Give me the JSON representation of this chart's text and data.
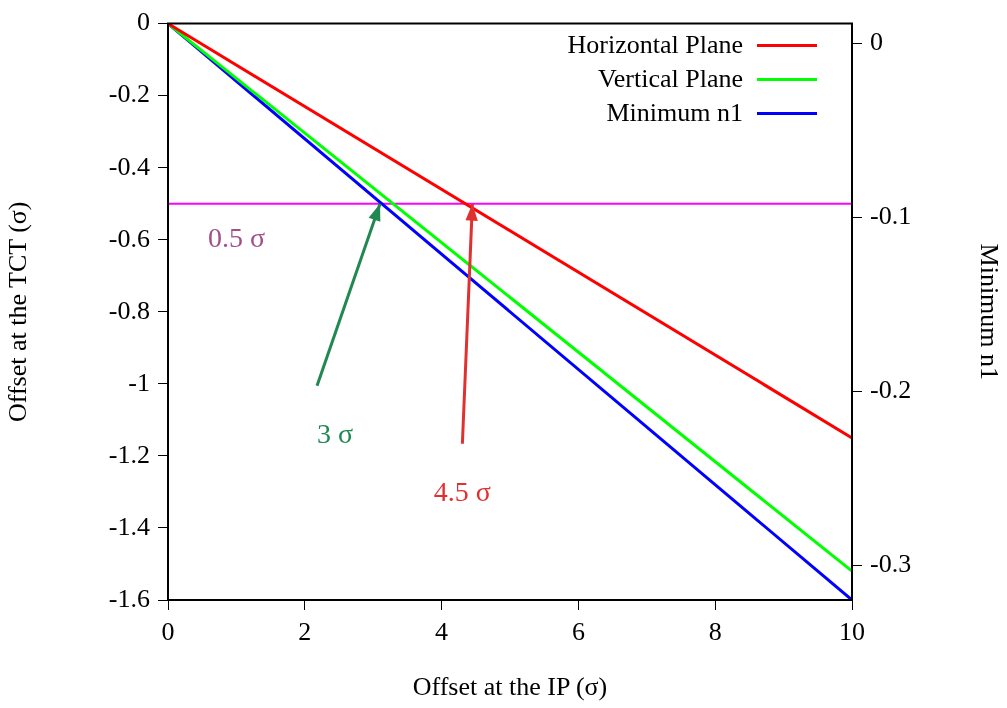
{
  "chart_data": {
    "type": "line",
    "xlabel": "Offset at the IP (σ)",
    "ylabel": "Offset at the TCT (σ)",
    "y2label": "Minimum n1",
    "x": [
      0,
      10
    ],
    "series": [
      {
        "name": "Horizontal Plane",
        "color": "#ff0000",
        "values": [
          0,
          -1.15
        ]
      },
      {
        "name": "Vertical Plane",
        "color": "#00ff00",
        "values": [
          0,
          -1.52
        ]
      },
      {
        "name": "Minimum n1",
        "color": "#0000ff",
        "values": [
          0,
          -1.6
        ]
      }
    ],
    "xlim": [
      0,
      10
    ],
    "xticks": [
      0,
      2,
      4,
      6,
      8,
      10
    ],
    "ylim": [
      -1.6,
      0
    ],
    "yticks": [
      0,
      -0.2,
      -0.4,
      -0.6,
      -0.8,
      -1,
      -1.2,
      -1.4,
      -1.6
    ],
    "y2lim": [
      -0.32,
      0.0114
    ],
    "y2ticks": [
      0,
      -0.1,
      -0.2,
      -0.3
    ],
    "ref_lines": [
      {
        "axis": "y",
        "value": -0.5,
        "label": "0.5 σ",
        "color": "#ff00ff"
      }
    ],
    "annotations": [
      {
        "text": "3 σ",
        "x": 3.1,
        "y": -0.5
      },
      {
        "text": "4.5 σ",
        "x": 4.45,
        "y": -0.5
      }
    ],
    "legend": "top right",
    "grid": false,
    "marker": "none",
    "line_style": "solid"
  }
}
